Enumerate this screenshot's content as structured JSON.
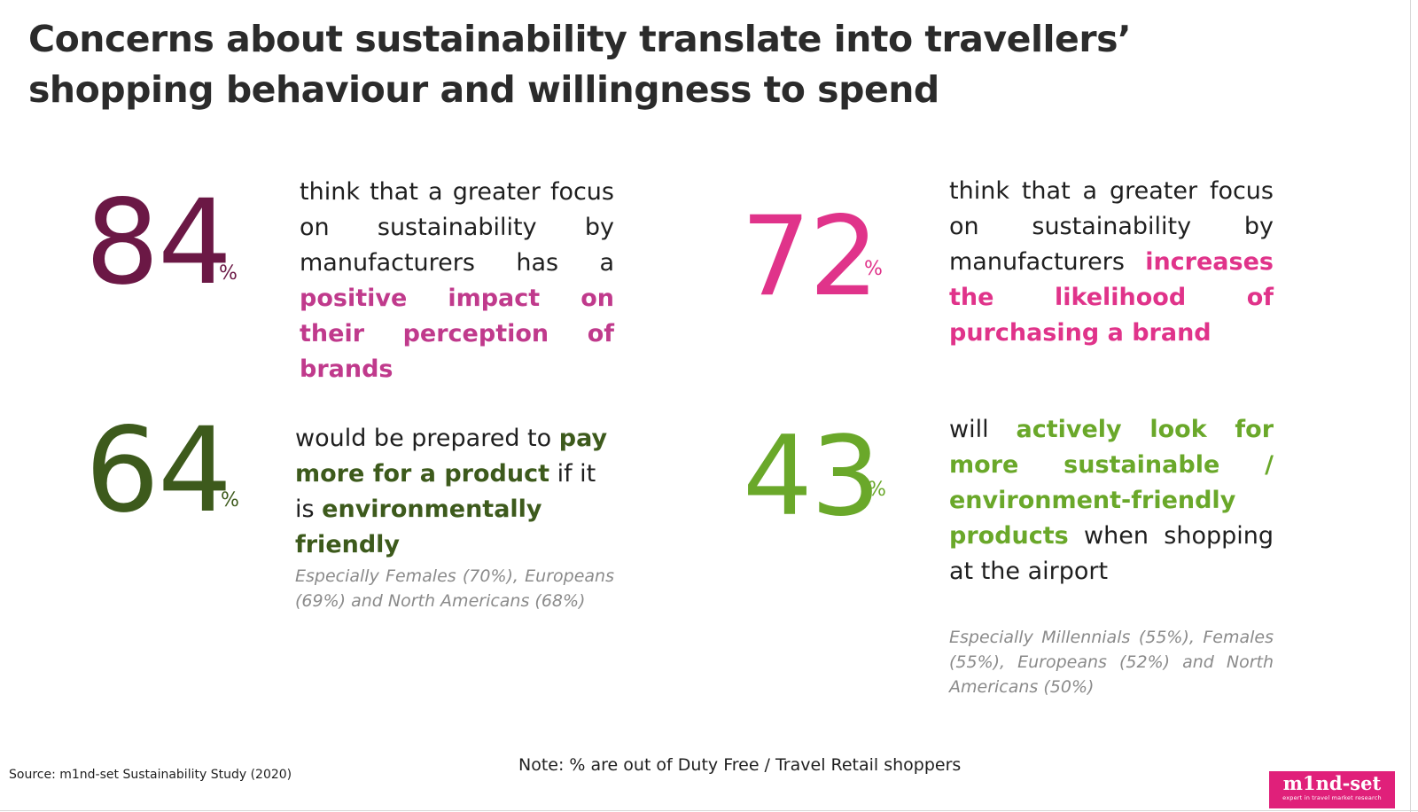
{
  "title": "Concerns about sustainability translate into travellers’ shopping behaviour and willingness to spend",
  "colors": {
    "plum": "#6b1845",
    "magenta": "#e0338a",
    "dark_green": "#3d5a1c",
    "light_green": "#6aa82a",
    "grey_note": "#8a8a8a"
  },
  "stats": [
    {
      "value": "84",
      "unit": "%",
      "text_before": "think that a greater focus on sustainability by manufacturers has a ",
      "highlight": "positive impact on their perception of brands",
      "text_after": ""
    },
    {
      "value": "72",
      "unit": "%",
      "text_before": "think that a greater focus on sustainability by manufacturers ",
      "highlight": "increases the likelihood of purchasing a brand",
      "text_after": ""
    },
    {
      "value": "64",
      "unit": "%",
      "text_before": "would be prepared to ",
      "highlight": "pay more for a product",
      "text_middle": " if it is ",
      "highlight2": "environmentally friendly",
      "note": "Especially Females (70%), Europeans (69%) and North Americans (68%)"
    },
    {
      "value": "43",
      "unit": "%",
      "text_before": "will ",
      "highlight": "actively look for more sustainable / environment-friendly products",
      "text_after": " when shopping at the airport",
      "note": "Especially Millennials (55%), Females (55%), Europeans (52%) and North Americans (50%)"
    }
  ],
  "footer": {
    "source": "Source: m1nd-set Sustainability Study (2020)",
    "note": "Note: % are out of Duty Free / Travel Retail shoppers",
    "logo_word": "m1nd-set",
    "logo_tagline": "expert in travel market research"
  }
}
